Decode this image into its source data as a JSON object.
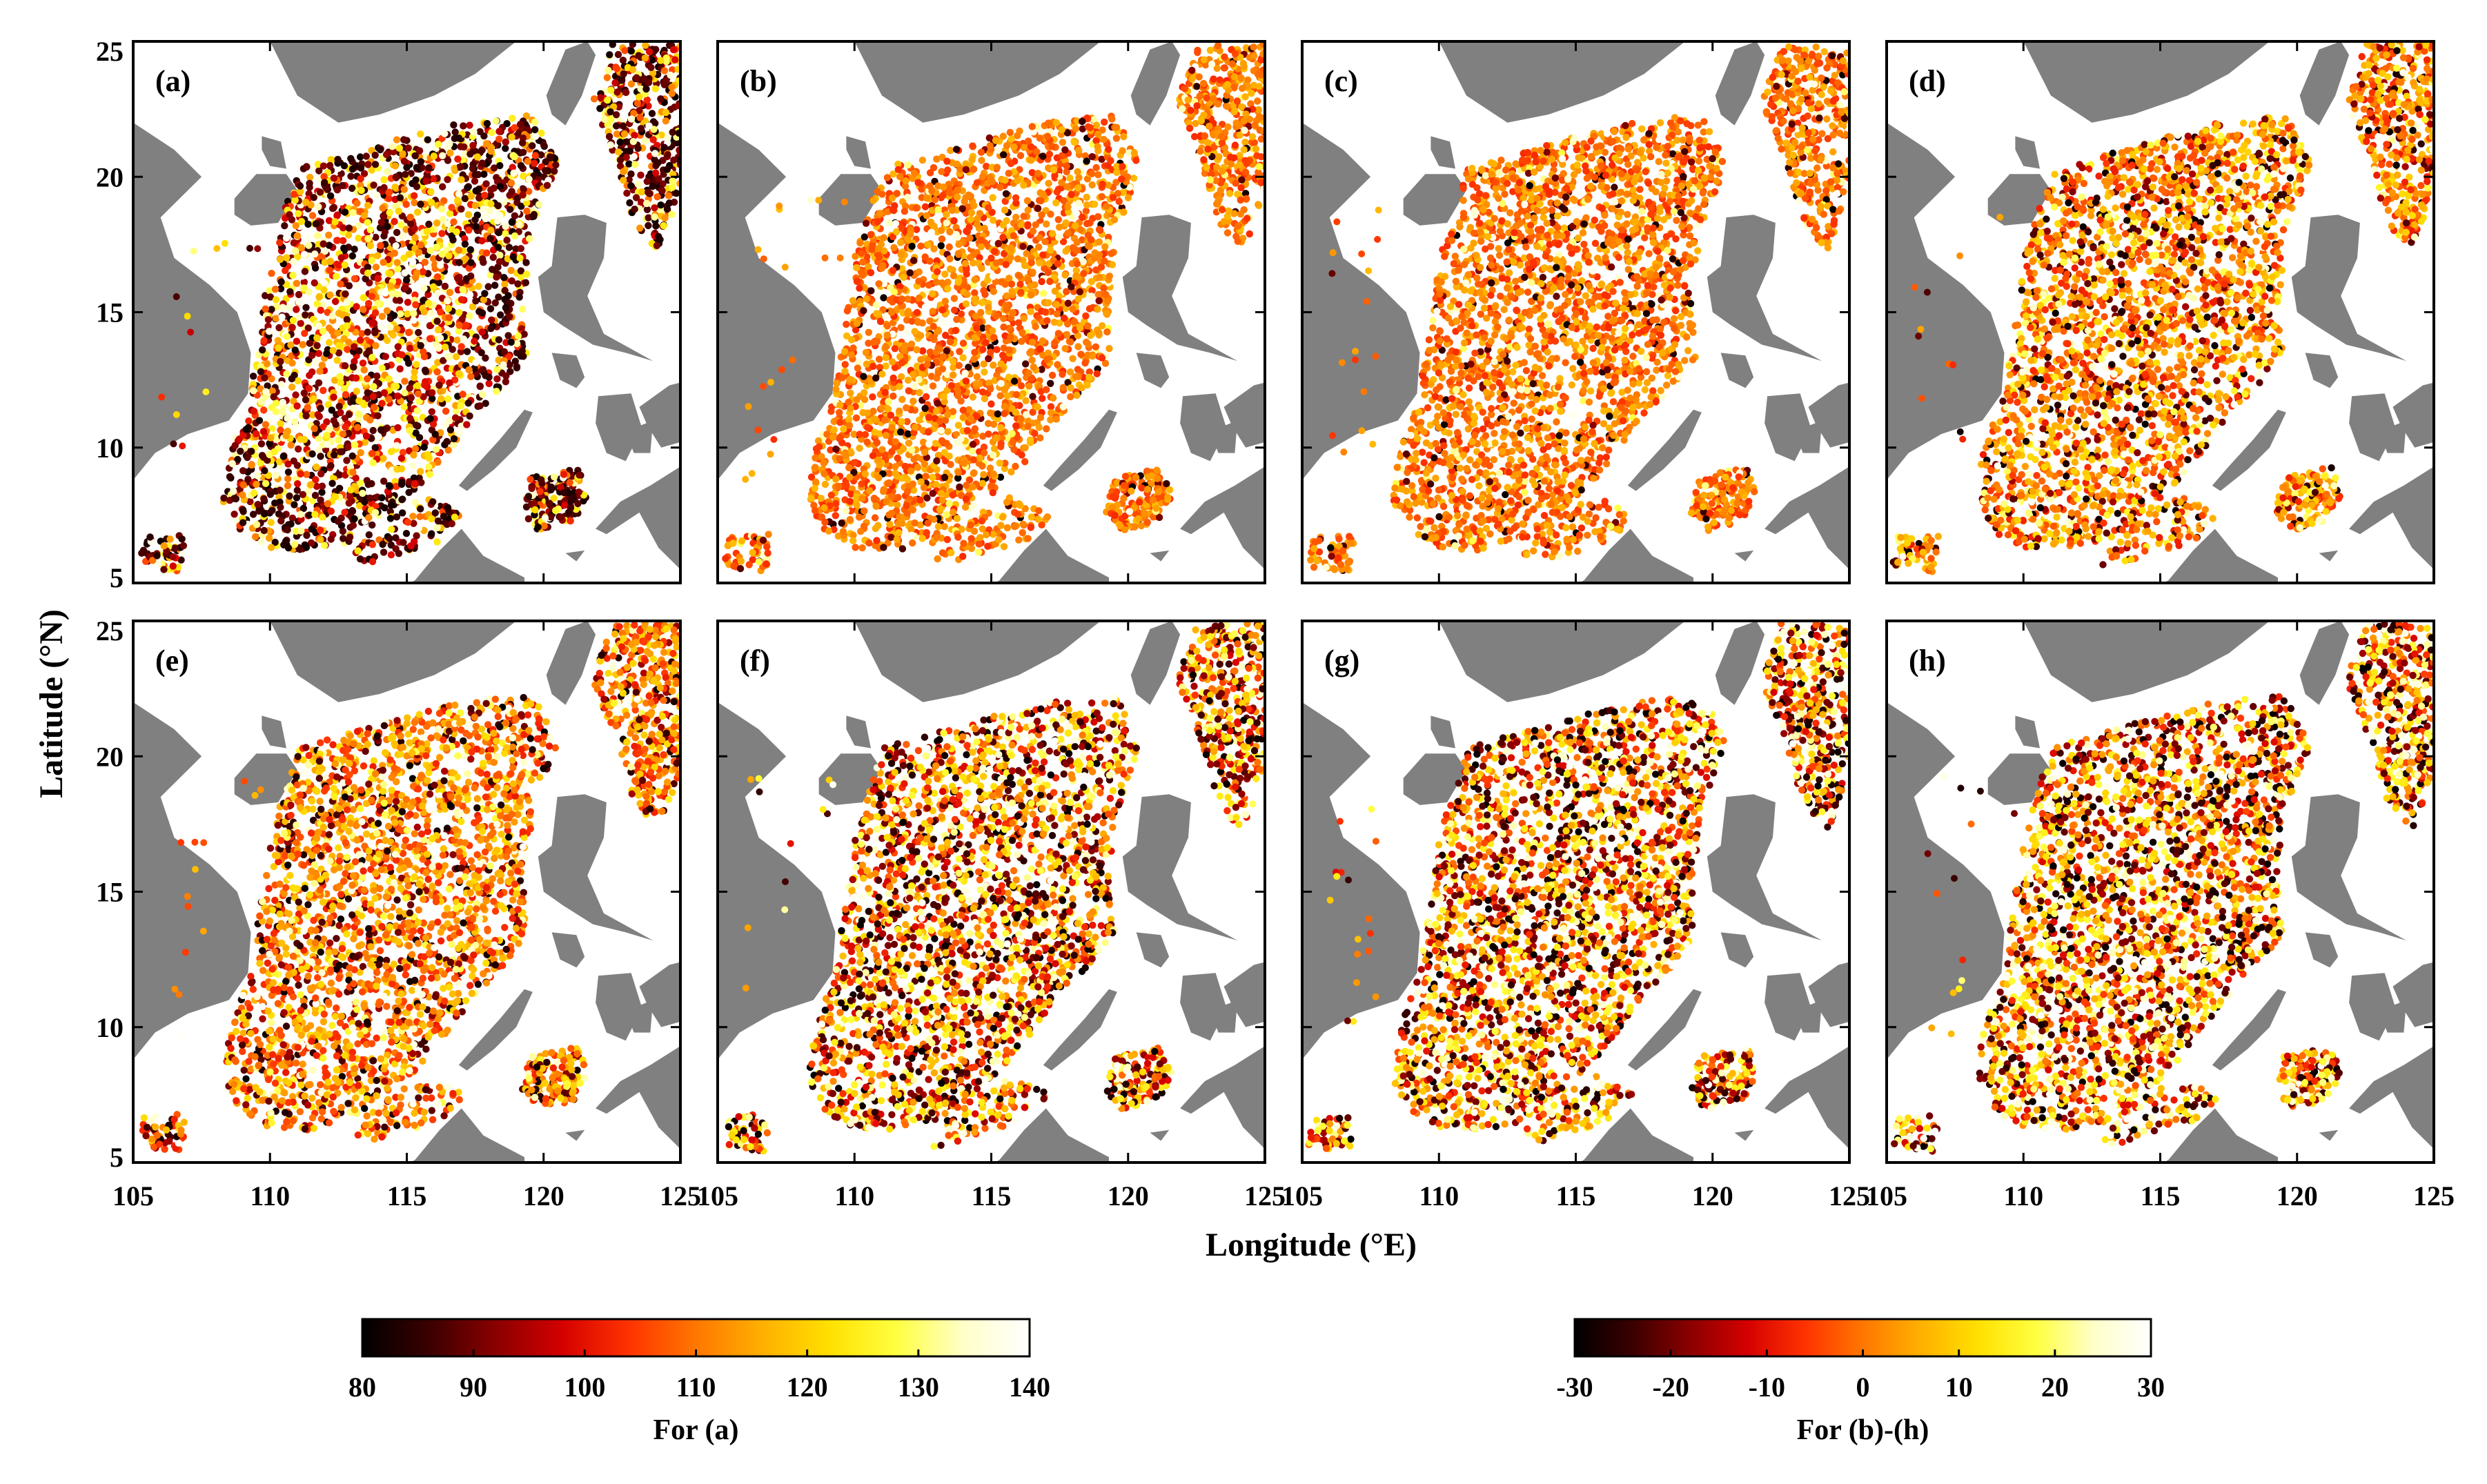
{
  "figure": {
    "xlabel": "Longitude (°E)",
    "ylabel": "Latitude (°N)",
    "lon_range": [
      105,
      125
    ],
    "lat_range": [
      5,
      25
    ],
    "x_ticks": [
      "105",
      "110",
      "115",
      "120",
      "125"
    ],
    "y_ticks": [
      "5",
      "10",
      "15",
      "20",
      "25"
    ],
    "colors": {
      "land": "#808080",
      "ocean": "#ffffff",
      "frame": "#000000"
    }
  },
  "chart_data": [
    {
      "type": "scatter",
      "label": "(a)",
      "colorbar": "a",
      "pattern": "mixed_dark",
      "seed": 11
    },
    {
      "type": "scatter",
      "label": "(b)",
      "colorbar": "b",
      "pattern": "uniform_orange",
      "seed": 23
    },
    {
      "type": "scatter",
      "label": "(c)",
      "colorbar": "b",
      "pattern": "uniform_orange",
      "seed": 37
    },
    {
      "type": "scatter",
      "label": "(d)",
      "colorbar": "b",
      "pattern": "orange_mixed",
      "seed": 41
    },
    {
      "type": "scatter",
      "label": "(e)",
      "colorbar": "b",
      "pattern": "orange_mixed",
      "seed": 53
    },
    {
      "type": "scatter",
      "label": "(f)",
      "colorbar": "b",
      "pattern": "mixed",
      "seed": 67
    },
    {
      "type": "scatter",
      "label": "(g)",
      "colorbar": "b",
      "pattern": "mixed",
      "seed": 79
    },
    {
      "type": "scatter",
      "label": "(h)",
      "colorbar": "b",
      "pattern": "mixed",
      "seed": 97
    }
  ],
  "colorbars": [
    {
      "id": "a",
      "title": "For (a)",
      "min": 80,
      "max": 140,
      "ticks": [
        "80",
        "90",
        "100",
        "110",
        "120",
        "130",
        "140"
      ]
    },
    {
      "id": "b",
      "title": "For (b)-(h)",
      "min": -30,
      "max": 30,
      "ticks": [
        "-30",
        "-20",
        "-10",
        "0",
        "10",
        "20",
        "30"
      ]
    }
  ],
  "colormap": [
    "#000000",
    "#3a0000",
    "#8a0000",
    "#d40000",
    "#ff3300",
    "#ff7700",
    "#ffb000",
    "#ffe000",
    "#ffff40",
    "#ffffc8",
    "#ffffff"
  ]
}
